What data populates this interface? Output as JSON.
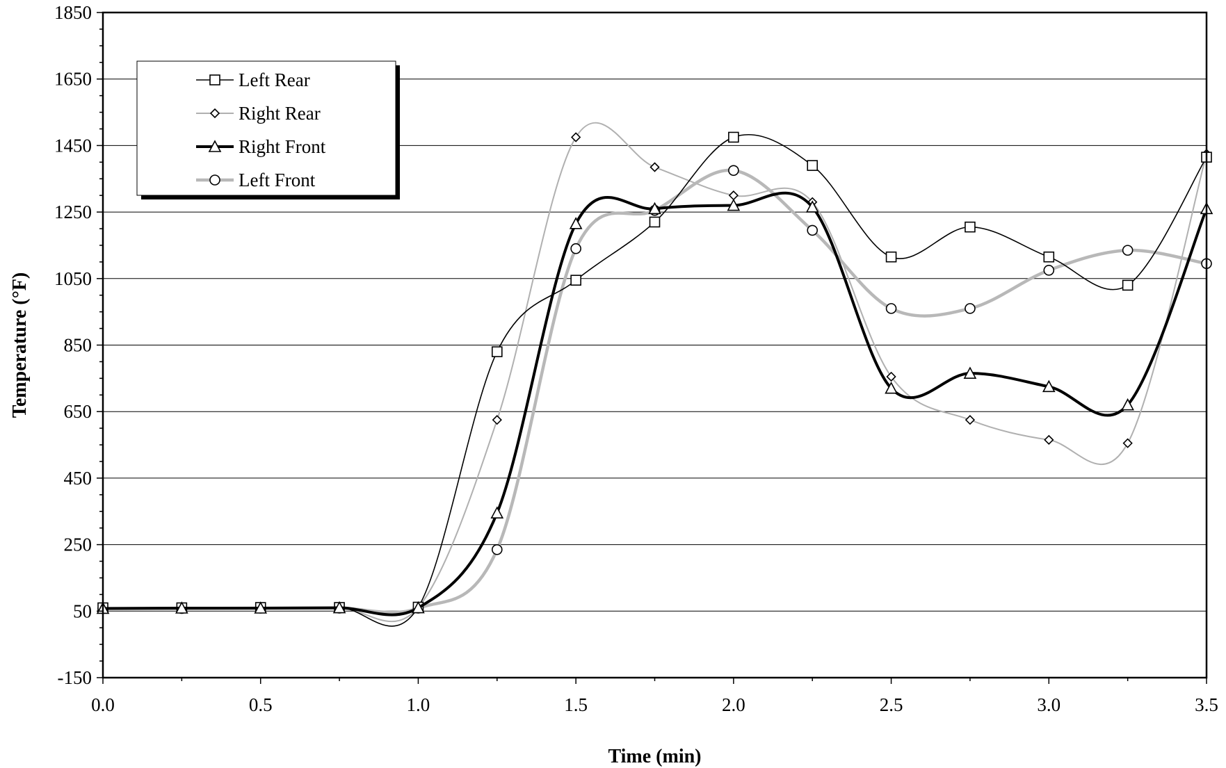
{
  "chart_data": {
    "type": "line",
    "title": "",
    "xlabel": "Time (min)",
    "ylabel": "Temperature (°F)",
    "xlim": [
      0.0,
      3.5
    ],
    "ylim": [
      -150,
      1850
    ],
    "x_ticks": [
      "0.0",
      "0.5",
      "1.0",
      "1.5",
      "2.0",
      "2.5",
      "3.0",
      "3.5"
    ],
    "y_ticks": [
      "-150",
      "50",
      "250",
      "450",
      "650",
      "850",
      "1050",
      "1250",
      "1450",
      "1650",
      "1850"
    ],
    "grid": "horizontal",
    "legend_position": "top-left",
    "x": [
      0.0,
      0.25,
      0.5,
      0.75,
      1.0,
      1.25,
      1.5,
      1.75,
      2.0,
      2.25,
      2.5,
      2.75,
      3.0,
      3.25,
      3.5
    ],
    "series": [
      {
        "name": "Left Rear",
        "marker": "square",
        "color": "#000000",
        "line_width": 1.6,
        "values": [
          60,
          60,
          61,
          61,
          62,
          830,
          1045,
          1220,
          1475,
          1390,
          1115,
          1205,
          1115,
          1030,
          1415
        ]
      },
      {
        "name": "Right Rear",
        "marker": "diamond",
        "color": "#b0b0b0",
        "line_width": 2,
        "values": [
          58,
          59,
          60,
          60,
          61,
          625,
          1475,
          1385,
          1300,
          1280,
          755,
          625,
          565,
          555,
          1425
        ]
      },
      {
        "name": "Right Front",
        "marker": "triangle",
        "color": "#000000",
        "line_width": 4,
        "values": [
          58,
          59,
          59,
          60,
          60,
          345,
          1215,
          1260,
          1270,
          1265,
          720,
          765,
          725,
          670,
          1260
        ]
      },
      {
        "name": "Left Front",
        "marker": "circle",
        "color": "#b8b8b8",
        "line_width": 4.5,
        "values": [
          58,
          58,
          59,
          59,
          59,
          235,
          1140,
          1255,
          1375,
          1195,
          960,
          960,
          1075,
          1135,
          1095
        ]
      }
    ]
  }
}
